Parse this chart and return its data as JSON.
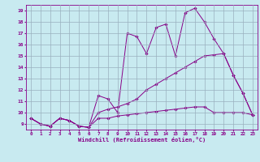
{
  "xlabel": "Windchill (Refroidissement éolien,°C)",
  "background_color": "#c8eaf0",
  "grid_color": "#9ab0be",
  "line_color": "#880088",
  "xlim": [
    -0.5,
    23.5
  ],
  "ylim": [
    8.5,
    19.5
  ],
  "xticks": [
    0,
    1,
    2,
    3,
    4,
    5,
    6,
    7,
    8,
    9,
    10,
    11,
    12,
    13,
    14,
    15,
    16,
    17,
    18,
    19,
    20,
    21,
    22,
    23
  ],
  "yticks": [
    9,
    10,
    11,
    12,
    13,
    14,
    15,
    16,
    17,
    18,
    19
  ],
  "series": [
    [
      9.5,
      9.0,
      8.8,
      9.5,
      9.3,
      8.8,
      8.7,
      11.5,
      11.2,
      10.0,
      17.0,
      16.7,
      15.2,
      17.5,
      17.8,
      15.0,
      18.8,
      19.2,
      18.0,
      16.5,
      15.2,
      13.3,
      11.7,
      9.8
    ],
    [
      9.5,
      9.0,
      8.8,
      9.5,
      9.3,
      8.8,
      8.7,
      10.0,
      10.3,
      10.5,
      10.8,
      11.2,
      12.0,
      12.5,
      13.0,
      13.5,
      14.0,
      14.5,
      15.0,
      15.1,
      15.2,
      13.3,
      11.7,
      9.8
    ],
    [
      9.5,
      9.0,
      8.8,
      9.5,
      9.3,
      8.8,
      8.7,
      9.5,
      9.5,
      9.7,
      9.8,
      9.9,
      10.0,
      10.1,
      10.2,
      10.3,
      10.4,
      10.5,
      10.5,
      10.0,
      10.0,
      10.0,
      10.0,
      9.8
    ]
  ]
}
